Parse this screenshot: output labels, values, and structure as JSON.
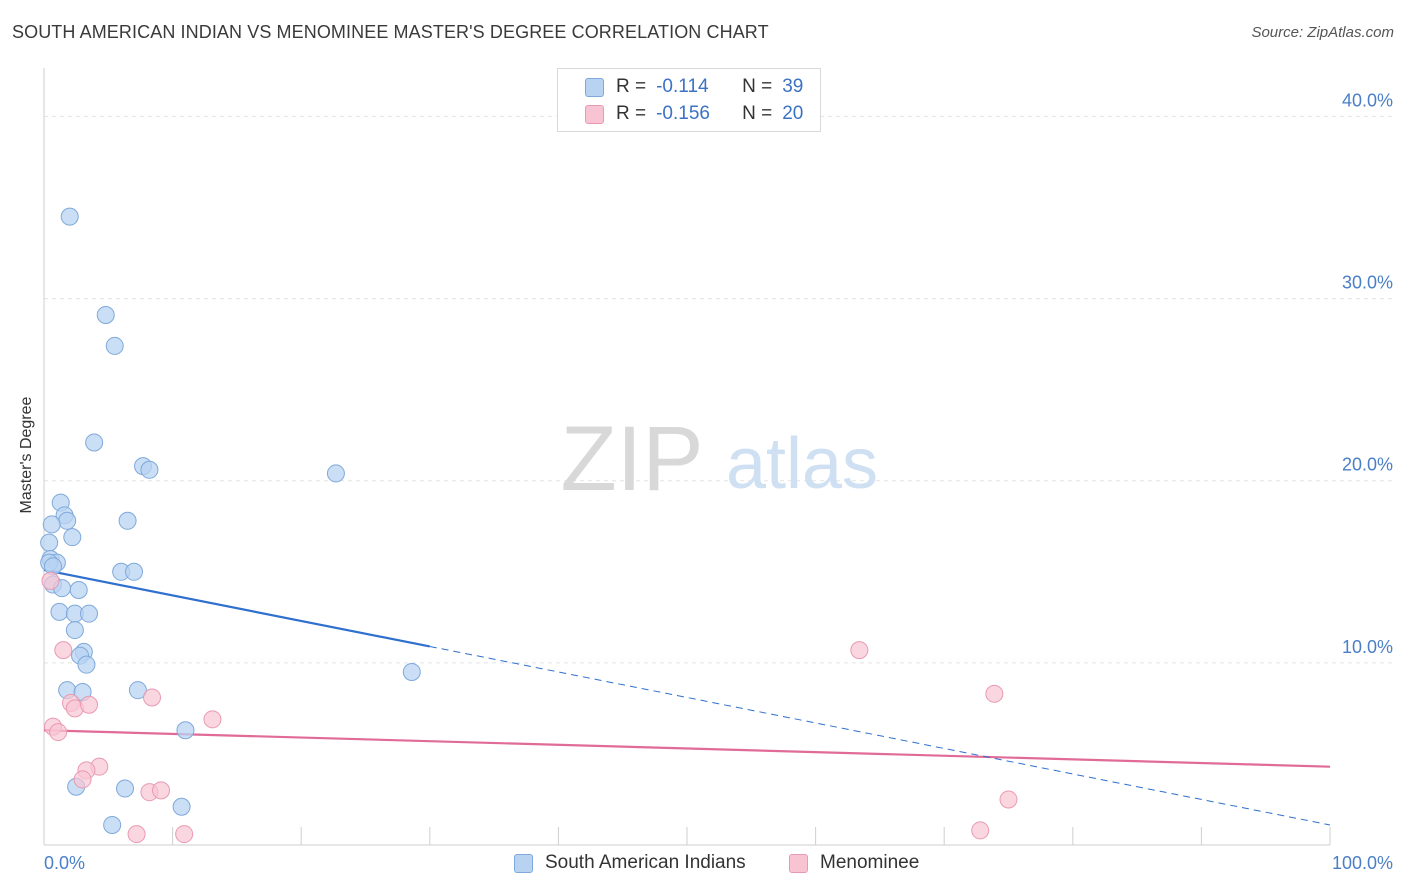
{
  "header": {
    "title": "SOUTH AMERICAN INDIAN VS MENOMINEE MASTER'S DEGREE CORRELATION CHART",
    "source": "Source: ZipAtlas.com"
  },
  "watermark": {
    "zip": "ZIP",
    "atlas": "atlas"
  },
  "colors": {
    "blue_fill": "#b8d3f2",
    "blue_stroke": "#7fa9da",
    "blue_line": "#2f6fce",
    "pink_fill": "#f8c4d3",
    "pink_stroke": "#e99ab3",
    "pink_line": "#e06b97",
    "axis_text": "#4a7fc8",
    "grid": "#e3e3e3"
  },
  "legend_top": [
    {
      "r_label": "R =",
      "r_value": "-0.114",
      "n_label": "N =",
      "n_value": "39"
    },
    {
      "r_label": "R =",
      "r_value": "-0.156",
      "n_label": "N =",
      "n_value": "20"
    }
  ],
  "legend_bottom": [
    "South American Indians",
    "Menominee"
  ],
  "chart_data": {
    "type": "scatter",
    "title": "SOUTH AMERICAN INDIAN VS MENOMINEE MASTER'S DEGREE CORRELATION CHART",
    "xlabel": "",
    "ylabel": "Master's Degree",
    "xlim": [
      0,
      100
    ],
    "ylim": [
      0,
      42
    ],
    "x_tick_labels": [
      "0.0%",
      "100.0%"
    ],
    "y_ticks": [
      10,
      20,
      30,
      40
    ],
    "y_tick_labels": [
      "10.0%",
      "20.0%",
      "30.0%",
      "40.0%"
    ],
    "grid": true,
    "legend_position": "top-center",
    "series": [
      {
        "name": "South American Indians",
        "r": -0.114,
        "n": 39,
        "points": [
          [
            2.0,
            34.5
          ],
          [
            4.8,
            29.1
          ],
          [
            5.5,
            27.4
          ],
          [
            3.9,
            22.1
          ],
          [
            7.7,
            20.8
          ],
          [
            8.2,
            20.6
          ],
          [
            22.7,
            20.4
          ],
          [
            1.3,
            18.8
          ],
          [
            1.6,
            18.1
          ],
          [
            1.8,
            17.8
          ],
          [
            0.6,
            17.6
          ],
          [
            6.5,
            17.8
          ],
          [
            2.2,
            16.9
          ],
          [
            0.4,
            16.6
          ],
          [
            0.5,
            15.7
          ],
          [
            1.0,
            15.5
          ],
          [
            0.4,
            15.5
          ],
          [
            0.7,
            15.3
          ],
          [
            6.0,
            15.0
          ],
          [
            7.0,
            15.0
          ],
          [
            0.7,
            14.3
          ],
          [
            1.4,
            14.1
          ],
          [
            2.7,
            14.0
          ],
          [
            1.2,
            12.8
          ],
          [
            2.4,
            12.7
          ],
          [
            3.5,
            12.7
          ],
          [
            2.4,
            11.8
          ],
          [
            3.1,
            10.6
          ],
          [
            2.8,
            10.4
          ],
          [
            3.3,
            9.9
          ],
          [
            28.6,
            9.5
          ],
          [
            1.8,
            8.5
          ],
          [
            3.0,
            8.4
          ],
          [
            7.3,
            8.5
          ],
          [
            11.0,
            6.3
          ],
          [
            2.5,
            3.2
          ],
          [
            6.3,
            3.1
          ],
          [
            10.7,
            2.1
          ],
          [
            5.3,
            1.1
          ]
        ],
        "trend": {
          "x": [
            0,
            30
          ],
          "y": [
            15.1,
            10.9
          ],
          "extended_x": [
            30,
            100
          ],
          "extended_y": [
            10.9,
            1.1
          ]
        }
      },
      {
        "name": "Menominee",
        "r": -0.156,
        "n": 20,
        "points": [
          [
            0.5,
            14.5
          ],
          [
            1.5,
            10.7
          ],
          [
            63.4,
            10.7
          ],
          [
            73.9,
            8.3
          ],
          [
            8.4,
            8.1
          ],
          [
            2.1,
            7.8
          ],
          [
            2.4,
            7.5
          ],
          [
            3.5,
            7.7
          ],
          [
            13.1,
            6.9
          ],
          [
            0.7,
            6.5
          ],
          [
            1.1,
            6.2
          ],
          [
            4.3,
            4.3
          ],
          [
            3.3,
            4.1
          ],
          [
            3.0,
            3.6
          ],
          [
            8.2,
            2.9
          ],
          [
            9.1,
            3.0
          ],
          [
            75.0,
            2.5
          ],
          [
            72.8,
            0.8
          ],
          [
            7.2,
            0.6
          ],
          [
            10.9,
            0.6
          ]
        ],
        "trend": {
          "x": [
            0,
            100
          ],
          "y": [
            6.3,
            4.3
          ]
        }
      }
    ]
  }
}
